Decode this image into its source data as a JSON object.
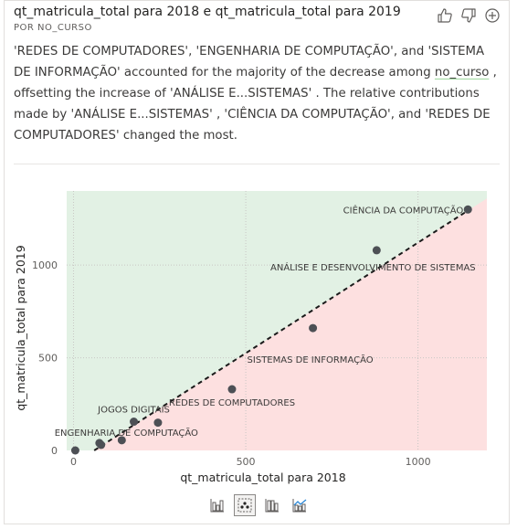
{
  "header": {
    "title": "qt_matricula_total para 2018 e qt_matricula_total para 2019",
    "subtitle": "POR NO_CURSO"
  },
  "actions": {
    "like_icon": "thumbs-up-icon",
    "dislike_icon": "thumbs-down-icon",
    "add_icon": "plus-circle-icon"
  },
  "narrative": {
    "p1": "'REDES DE COMPUTADORES', 'ENGENHARIA DE COMPUTAÇÃO', and 'SISTEMA DE INFORMAÇÃO' accounted for the majority of the decrease among ",
    "field": "no_curso",
    "p2": " , offsetting the increase of 'ANÁLISE E...SISTEMAS' . The relative contributions made by 'ANÁLISE E...SISTEMAS' , 'CIÊNCIA DA COMPUTAÇÃO', and 'REDES DE COMPUTADORES' changed the most."
  },
  "chart_data": {
    "type": "scatter",
    "xlabel": "qt_matricula_total para 2018",
    "ylabel": "qt_matricula_total para 2019",
    "xlim": [
      -20,
      1200
    ],
    "ylim": [
      0,
      1400
    ],
    "xticks": [
      0,
      500,
      1000
    ],
    "yticks": [
      0,
      500,
      1000
    ],
    "colors": {
      "point": "#4d5055",
      "increase_region": "#e2f1e4",
      "decrease_region": "#fde0e0",
      "trend": "#1b1b1b"
    },
    "trendline": [
      [
        60,
        0
      ],
      [
        1150,
        1300
      ]
    ],
    "points": [
      {
        "x": 1145,
        "y": 1300,
        "label": "CIÊNCIA DA COMPUTAÇÃO",
        "anchor": "end",
        "dx": -5,
        "dy": 4
      },
      {
        "x": 880,
        "y": 1080,
        "label": "ANÁLISE E DESENVOLVIMENTO DE SISTEMAS",
        "anchor": "middle",
        "dx": -4,
        "dy": 22
      },
      {
        "x": 695,
        "y": 660,
        "label": "SISTEMAS DE INFORMAÇÃO",
        "anchor": "middle",
        "dx": -3,
        "dy": 38
      },
      {
        "x": 460,
        "y": 330,
        "label": "REDES DE COMPUTADORES",
        "anchor": "middle",
        "dx": 0,
        "dy": 18
      },
      {
        "x": 175,
        "y": 155,
        "label": "JOGOS DIGITAIS",
        "anchor": "middle",
        "dx": 0,
        "dy": -10
      },
      {
        "x": 245,
        "y": 150,
        "label": "",
        "anchor": "middle",
        "dx": 0,
        "dy": 0
      },
      {
        "x": 140,
        "y": 55,
        "label": "ENGENHARIA DE COMPUTAÇÃO",
        "anchor": "middle",
        "dx": 5,
        "dy": -5
      },
      {
        "x": 75,
        "y": 40,
        "label": "",
        "anchor": "middle",
        "dx": 0,
        "dy": 0
      },
      {
        "x": 80,
        "y": 30,
        "label": "",
        "anchor": "middle",
        "dx": 0,
        "dy": 0
      },
      {
        "x": 5,
        "y": 0,
        "label": "",
        "anchor": "middle",
        "dx": 0,
        "dy": 0
      }
    ]
  },
  "tabs": [
    {
      "icon": "bar-chart-icon",
      "active": false
    },
    {
      "icon": "scatter-chart-icon",
      "active": true
    },
    {
      "icon": "column-chart-icon",
      "active": false
    },
    {
      "icon": "combo-chart-icon",
      "active": false
    }
  ]
}
